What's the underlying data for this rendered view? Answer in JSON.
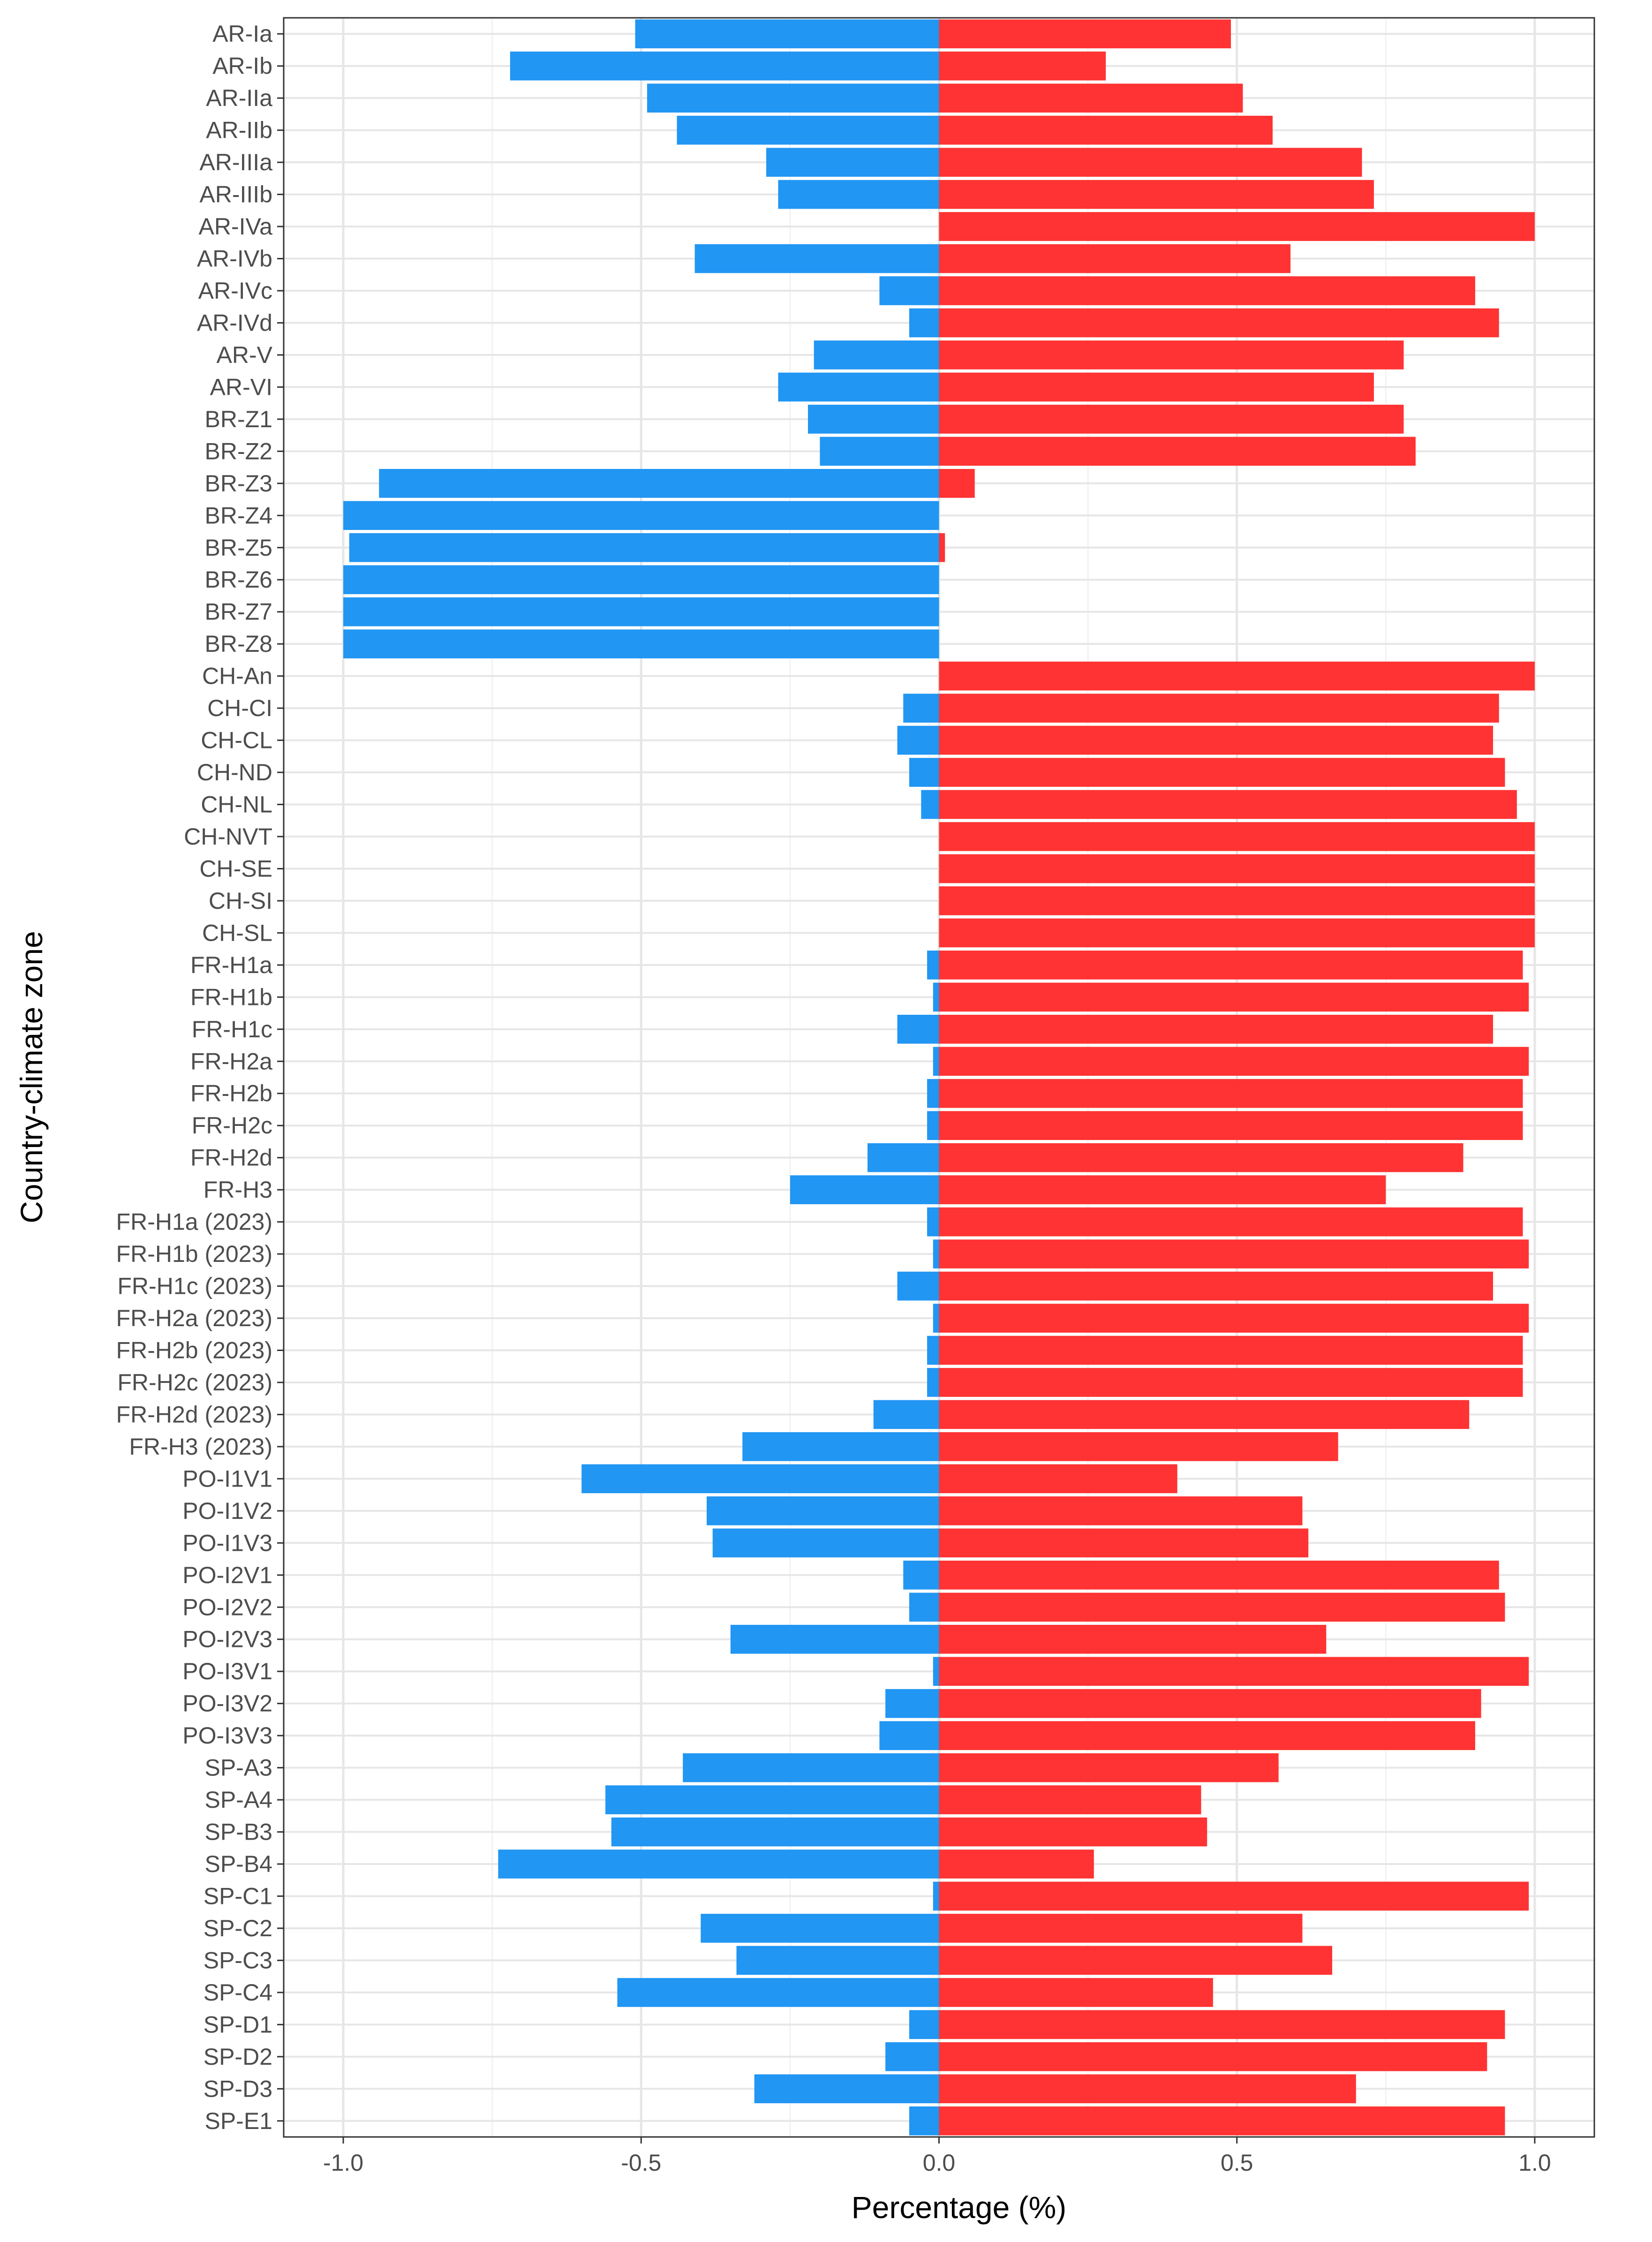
{
  "chart_data": {
    "type": "bar",
    "orientation": "horizontal",
    "title": "",
    "xlabel": "Percentage (%)",
    "ylabel": "Country-climate zone",
    "xlim": [
      -1.1,
      1.1
    ],
    "x_ticks": [
      -1.0,
      -0.5,
      0.0,
      0.5,
      1.0
    ],
    "x_tick_labels": [
      "-1.0",
      "-0.5",
      "0.0",
      "0.5",
      "1.0"
    ],
    "grid": true,
    "legend": "none",
    "colors": {
      "negative": "#2196F3",
      "positive": "#FF3333",
      "grid_major": "#E6E6E6",
      "grid_minor": "#F2F2F2",
      "panel_border": "#333333",
      "tick_text": "#4d4d4d"
    },
    "categories": [
      "AR-Ia",
      "AR-Ib",
      "AR-IIa",
      "AR-IIb",
      "AR-IIIa",
      "AR-IIIb",
      "AR-IVa",
      "AR-IVb",
      "AR-IVc",
      "AR-IVd",
      "AR-V",
      "AR-VI",
      "BR-Z1",
      "BR-Z2",
      "BR-Z3",
      "BR-Z4",
      "BR-Z5",
      "BR-Z6",
      "BR-Z7",
      "BR-Z8",
      "CH-An",
      "CH-CI",
      "CH-CL",
      "CH-ND",
      "CH-NL",
      "CH-NVT",
      "CH-SE",
      "CH-SI",
      "CH-SL",
      "FR-H1a",
      "FR-H1b",
      "FR-H1c",
      "FR-H2a",
      "FR-H2b",
      "FR-H2c",
      "FR-H2d",
      "FR-H3",
      "FR-H1a (2023)",
      "FR-H1b (2023)",
      "FR-H1c (2023)",
      "FR-H2a (2023)",
      "FR-H2b (2023)",
      "FR-H2c (2023)",
      "FR-H2d (2023)",
      "FR-H3 (2023)",
      "PO-I1V1",
      "PO-I1V2",
      "PO-I1V3",
      "PO-I2V1",
      "PO-I2V2",
      "PO-I2V3",
      "PO-I3V1",
      "PO-I3V2",
      "PO-I3V3",
      "SP-A3",
      "SP-A4",
      "SP-B3",
      "SP-B4",
      "SP-C1",
      "SP-C2",
      "SP-C3",
      "SP-C4",
      "SP-D1",
      "SP-D2",
      "SP-D3",
      "SP-E1"
    ],
    "series": [
      {
        "name": "negative",
        "color": "#2196F3",
        "values": [
          -0.51,
          -0.72,
          -0.49,
          -0.44,
          -0.29,
          -0.27,
          0.0,
          -0.41,
          -0.1,
          -0.05,
          -0.21,
          -0.27,
          -0.22,
          -0.2,
          -0.94,
          -1.0,
          -0.99,
          -1.0,
          -1.0,
          -1.0,
          0.0,
          -0.06,
          -0.07,
          -0.05,
          -0.03,
          0.0,
          0.0,
          0.0,
          0.0,
          -0.02,
          -0.01,
          -0.07,
          -0.01,
          -0.02,
          -0.02,
          -0.12,
          -0.25,
          -0.02,
          -0.01,
          -0.07,
          -0.01,
          -0.02,
          -0.02,
          -0.11,
          -0.33,
          -0.6,
          -0.39,
          -0.38,
          -0.06,
          -0.05,
          -0.35,
          -0.01,
          -0.09,
          -0.1,
          -0.43,
          -0.56,
          -0.55,
          -0.74,
          -0.01,
          -0.4,
          -0.34,
          -0.54,
          -0.05,
          -0.09,
          -0.31,
          -0.05
        ]
      },
      {
        "name": "positive",
        "color": "#FF3333",
        "values": [
          0.49,
          0.28,
          0.51,
          0.56,
          0.71,
          0.73,
          1.0,
          0.59,
          0.9,
          0.94,
          0.78,
          0.73,
          0.78,
          0.8,
          0.06,
          0.0,
          0.01,
          0.0,
          0.0,
          0.0,
          1.0,
          0.94,
          0.93,
          0.95,
          0.97,
          1.0,
          1.0,
          1.0,
          1.0,
          0.98,
          0.99,
          0.93,
          0.99,
          0.98,
          0.98,
          0.88,
          0.75,
          0.98,
          0.99,
          0.93,
          0.99,
          0.98,
          0.98,
          0.89,
          0.67,
          0.4,
          0.61,
          0.62,
          0.94,
          0.95,
          0.65,
          0.99,
          0.91,
          0.9,
          0.57,
          0.44,
          0.45,
          0.26,
          0.99,
          0.61,
          0.66,
          0.46,
          0.95,
          0.92,
          0.7,
          0.95
        ]
      }
    ]
  }
}
